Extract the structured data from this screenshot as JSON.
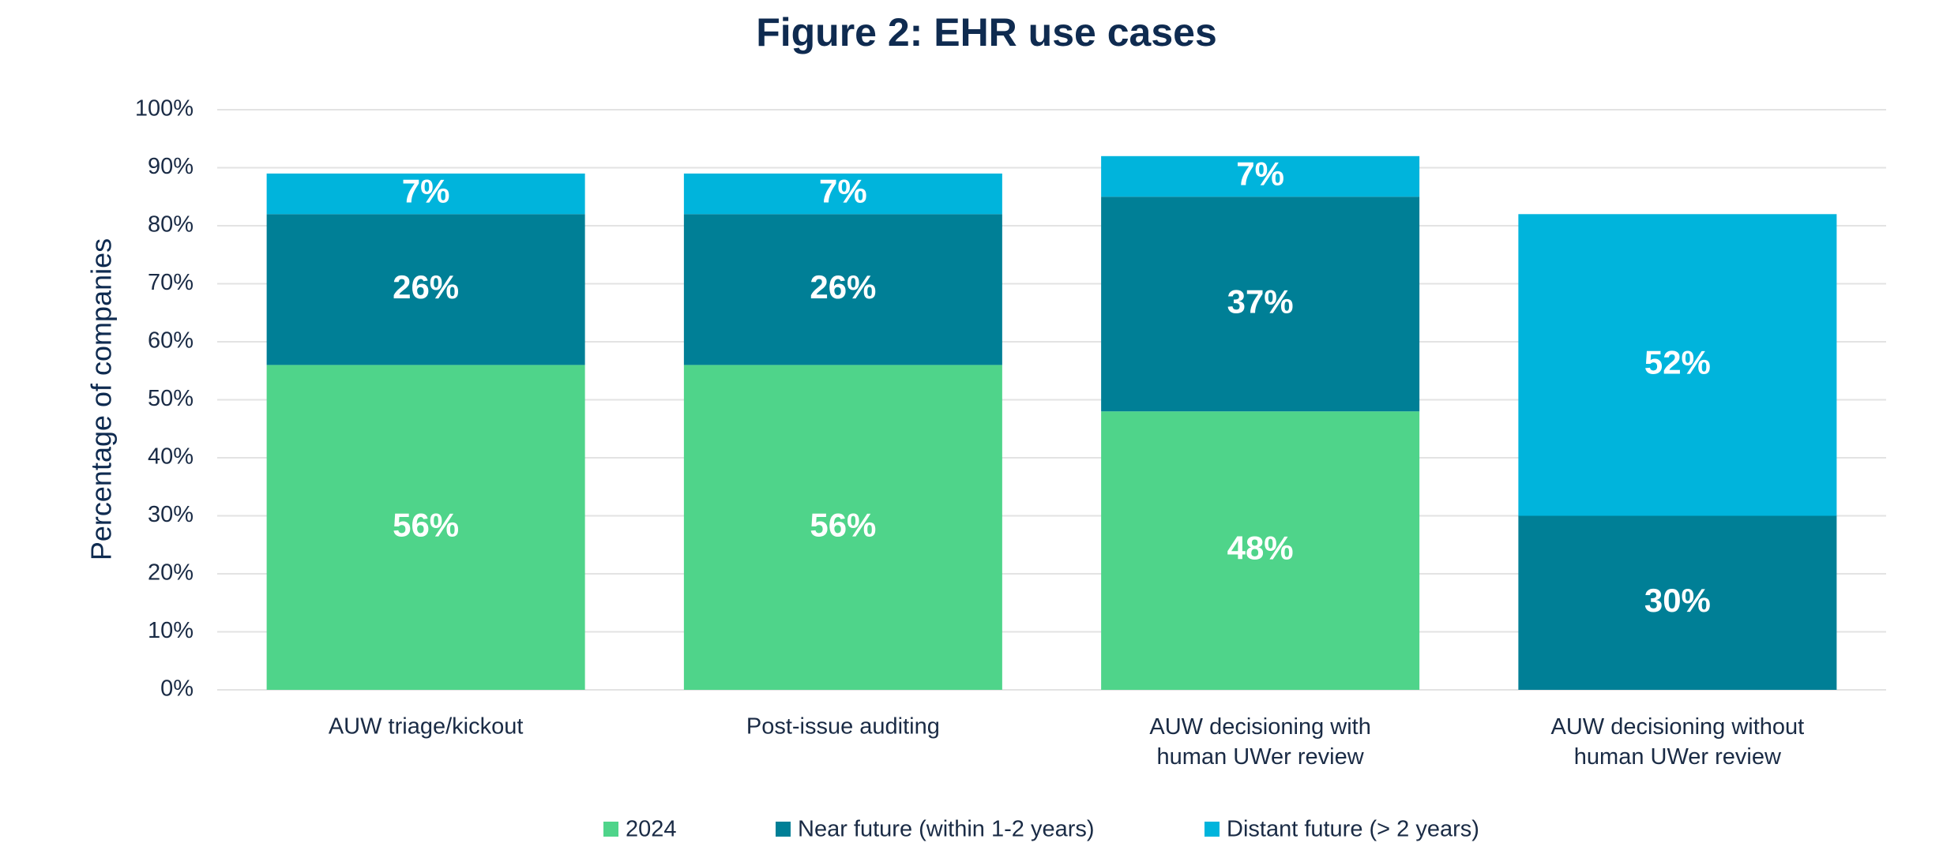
{
  "chart_data": {
    "type": "stacked_bar",
    "title": "Figure 2: EHR use cases",
    "y_label": "Percentage of companies",
    "categories": [
      "AUW triage/kickout",
      "Post-issue auditing",
      "AUW decisioning with human UWer review",
      "AUW decisioning without human UWer review"
    ],
    "series": [
      {
        "name": "2024",
        "color": "#4fd48a",
        "values": [
          56,
          56,
          48,
          null
        ],
        "value_labels": [
          "56%",
          "56%",
          "48%",
          null
        ]
      },
      {
        "name": "Near future (within 1-2 years)",
        "color": "#007f96",
        "values": [
          26,
          26,
          37,
          30
        ],
        "value_labels": [
          "26%",
          "26%",
          "37%",
          "30%"
        ]
      },
      {
        "name": "Distant future (> 2 years)",
        "color": "#00b4dc",
        "values": [
          7,
          7,
          7,
          52
        ],
        "value_labels": [
          "7%",
          "7%",
          "7%",
          "52%"
        ]
      }
    ],
    "ylim": [
      0,
      100
    ],
    "yticks": [
      {
        "value": 0,
        "label": "0%"
      },
      {
        "value": 10,
        "label": "10%"
      },
      {
        "value": 20,
        "label": "20%"
      },
      {
        "value": 30,
        "label": "30%"
      },
      {
        "value": 40,
        "label": "40%"
      },
      {
        "value": 50,
        "label": "50%"
      },
      {
        "value": 60,
        "label": "60%"
      },
      {
        "value": 70,
        "label": "70%"
      },
      {
        "value": 80,
        "label": "80%"
      },
      {
        "value": 90,
        "label": "90%"
      },
      {
        "value": 100,
        "label": "100%"
      }
    ],
    "grid": true,
    "legend": "bottom"
  }
}
